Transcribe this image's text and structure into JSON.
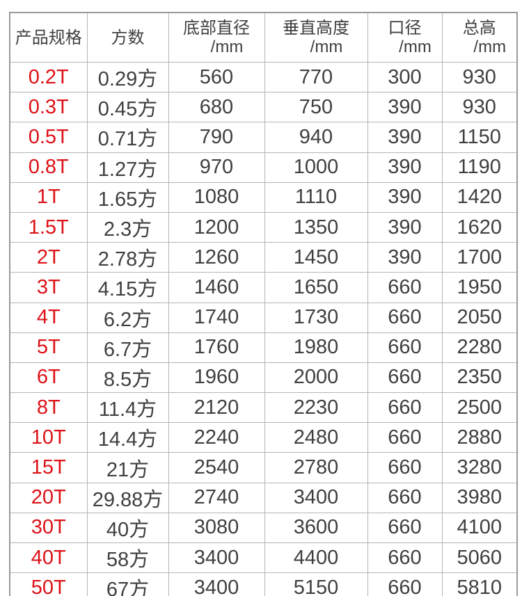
{
  "chart_data": {
    "type": "table",
    "columns": [
      {
        "label": "产品规格",
        "unit": ""
      },
      {
        "label": "方数",
        "unit": ""
      },
      {
        "label": "底部直径",
        "unit": "/mm"
      },
      {
        "label": "垂直高度",
        "unit": "/mm"
      },
      {
        "label": "口径",
        "unit": "/mm"
      },
      {
        "label": "总高",
        "unit": "/mm"
      }
    ],
    "rows": [
      [
        "0.2T",
        "0.29方",
        "560",
        "770",
        "300",
        "930"
      ],
      [
        "0.3T",
        "0.45方",
        "680",
        "750",
        "390",
        "930"
      ],
      [
        "0.5T",
        "0.71方",
        "790",
        "940",
        "390",
        "1150"
      ],
      [
        "0.8T",
        "1.27方",
        "970",
        "1000",
        "390",
        "1190"
      ],
      [
        "1T",
        "1.65方",
        "1080",
        "1110",
        "390",
        "1420"
      ],
      [
        "1.5T",
        "2.3方",
        "1200",
        "1350",
        "390",
        "1620"
      ],
      [
        "2T",
        "2.78方",
        "1260",
        "1450",
        "390",
        "1700"
      ],
      [
        "3T",
        "4.15方",
        "1460",
        "1650",
        "660",
        "1950"
      ],
      [
        "4T",
        "6.2方",
        "1740",
        "1730",
        "660",
        "2050"
      ],
      [
        "5T",
        "6.7方",
        "1760",
        "1980",
        "660",
        "2280"
      ],
      [
        "6T",
        "8.5方",
        "1960",
        "2000",
        "660",
        "2350"
      ],
      [
        "8T",
        "11.4方",
        "2120",
        "2230",
        "660",
        "2500"
      ],
      [
        "10T",
        "14.4方",
        "2240",
        "2480",
        "660",
        "2880"
      ],
      [
        "15T",
        "21方",
        "2540",
        "2780",
        "660",
        "3280"
      ],
      [
        "20T",
        "29.88方",
        "2740",
        "3400",
        "660",
        "3980"
      ],
      [
        "30T",
        "40方",
        "3080",
        "3600",
        "660",
        "4100"
      ],
      [
        "40T",
        "58方",
        "3400",
        "4400",
        "660",
        "5060"
      ],
      [
        "50T",
        "67方",
        "3400",
        "5150",
        "660",
        "5810"
      ]
    ]
  },
  "colors": {
    "spec_red": "#dd1117",
    "text_dark": "#3f3f3f",
    "border_inner": "#b5b5b5",
    "border_outer": "#9a9a9a",
    "background": "#ffffff"
  }
}
